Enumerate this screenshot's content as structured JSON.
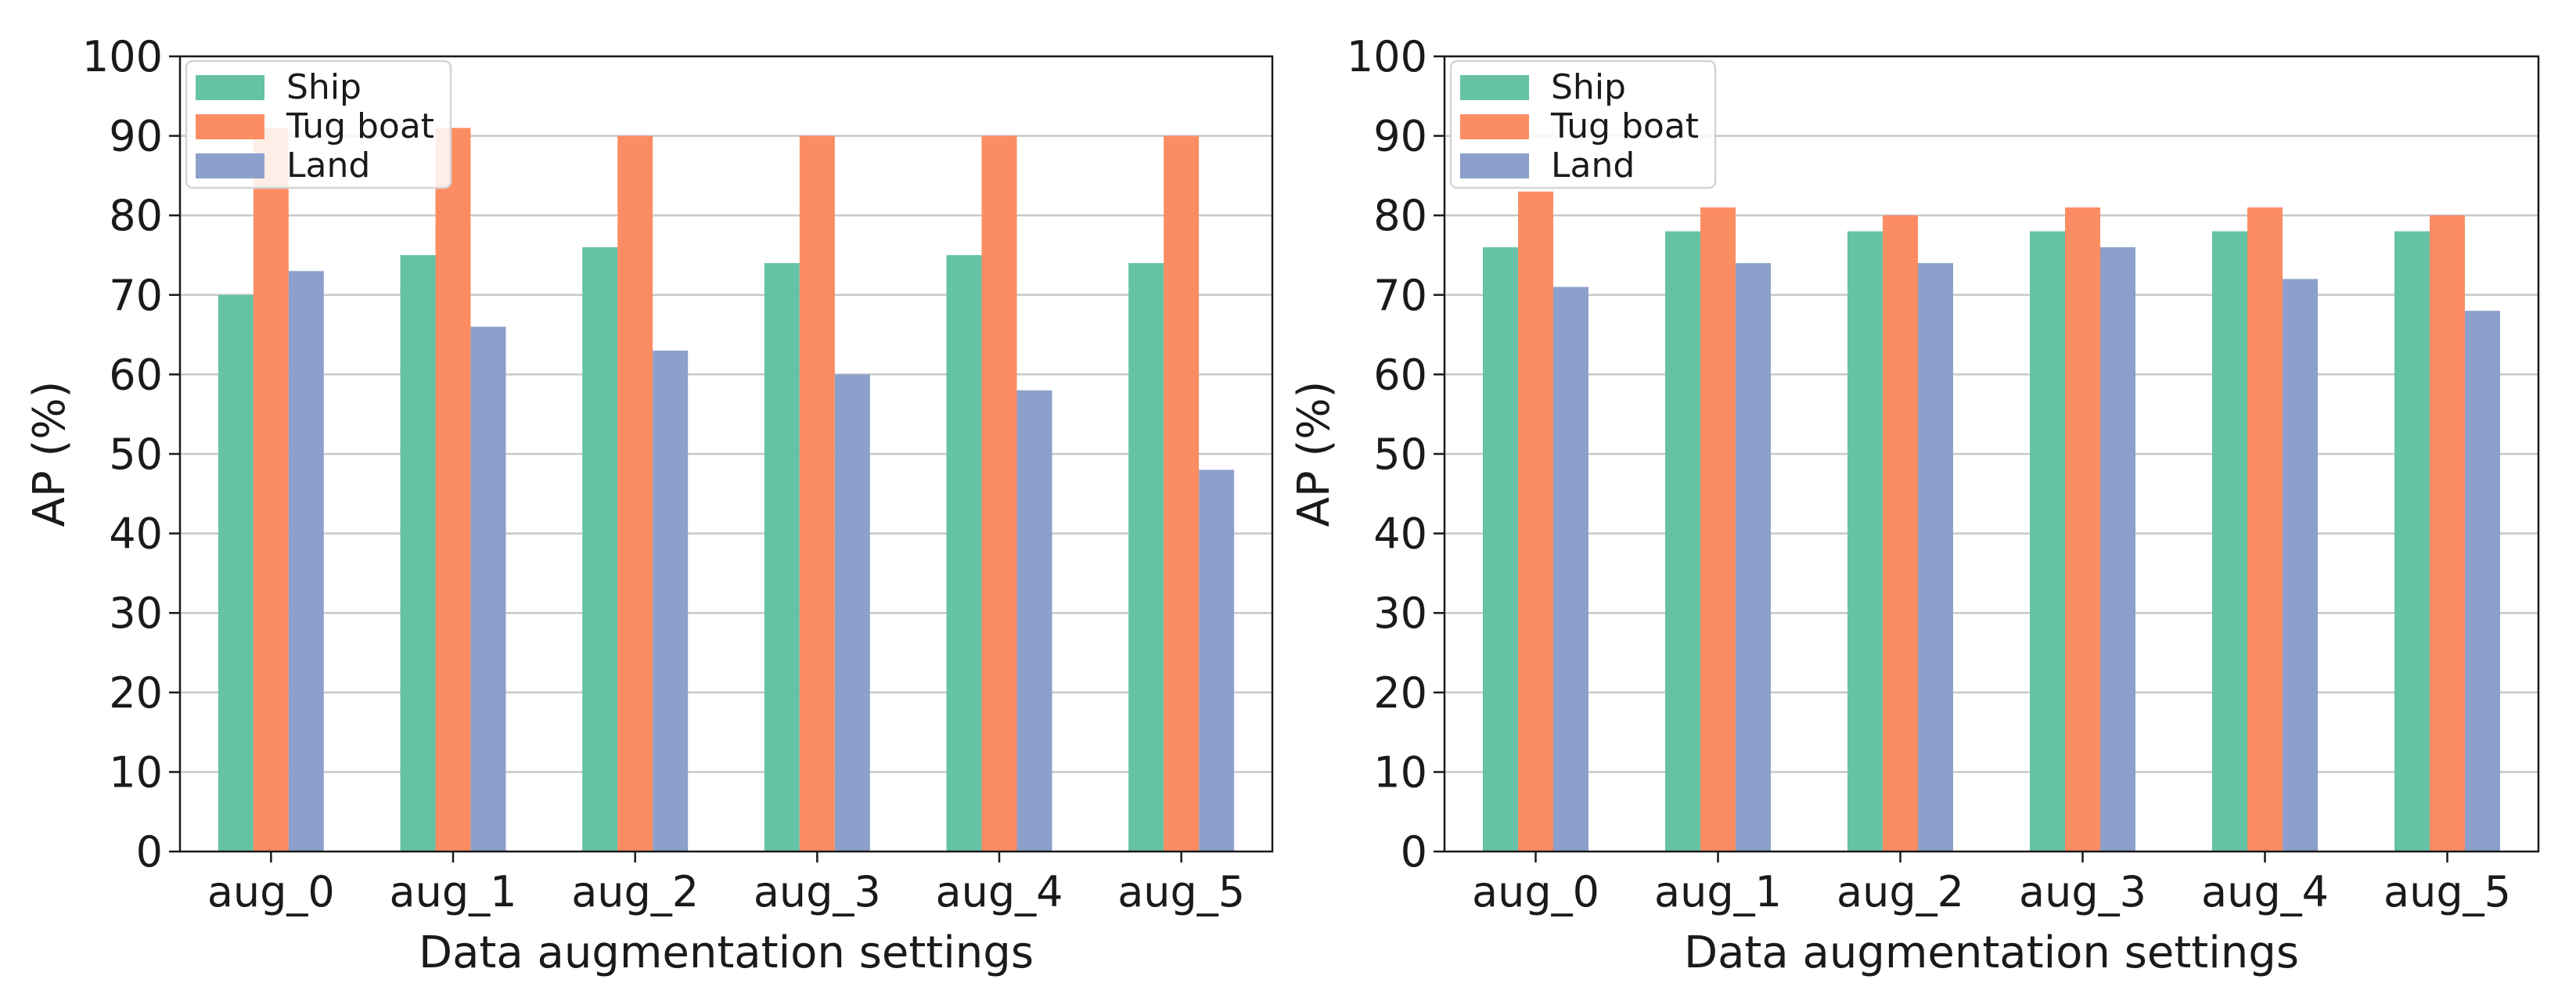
{
  "chart_data": [
    {
      "type": "bar",
      "categories": [
        "aug_0",
        "aug_1",
        "aug_2",
        "aug_3",
        "aug_4",
        "aug_5"
      ],
      "series": [
        {
          "name": "Ship",
          "color": "#66c2a5",
          "values": [
            70,
            75,
            76,
            74,
            75,
            74
          ]
        },
        {
          "name": "Tug boat",
          "color": "#fc8d62",
          "values": [
            91,
            91,
            90,
            90,
            90,
            90
          ]
        },
        {
          "name": "Land",
          "color": "#8da0cb",
          "values": [
            73,
            66,
            63,
            60,
            58,
            48
          ]
        }
      ],
      "title": "",
      "xlabel": "Data augmentation settings",
      "ylabel": "AP (%)",
      "ylim": [
        0,
        100
      ],
      "yticks": [
        0,
        10,
        20,
        30,
        40,
        50,
        60,
        70,
        80,
        90,
        100
      ],
      "grid": "horizontal",
      "legend_position": "top-left"
    },
    {
      "type": "bar",
      "categories": [
        "aug_0",
        "aug_1",
        "aug_2",
        "aug_3",
        "aug_4",
        "aug_5"
      ],
      "series": [
        {
          "name": "Ship",
          "color": "#66c2a5",
          "values": [
            76,
            78,
            78,
            78,
            78,
            78
          ]
        },
        {
          "name": "Tug boat",
          "color": "#fc8d62",
          "values": [
            83,
            81,
            80,
            81,
            81,
            80
          ]
        },
        {
          "name": "Land",
          "color": "#8da0cb",
          "values": [
            71,
            74,
            74,
            76,
            72,
            68
          ]
        }
      ],
      "title": "",
      "xlabel": "Data augmentation settings",
      "ylabel": "AP (%)",
      "ylim": [
        0,
        100
      ],
      "yticks": [
        0,
        10,
        20,
        30,
        40,
        50,
        60,
        70,
        80,
        90,
        100
      ],
      "grid": "horizontal",
      "legend_position": "top-left"
    }
  ]
}
